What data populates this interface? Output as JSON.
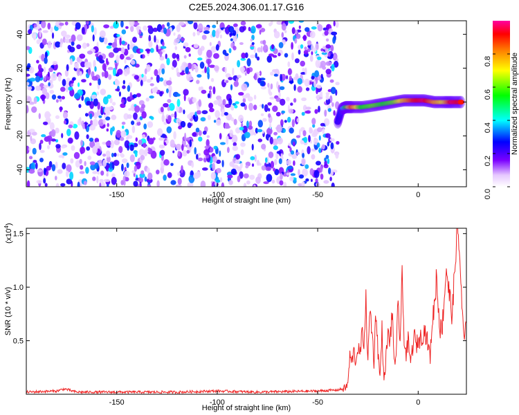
{
  "title": "C2E5.2024.306.01.17.G16",
  "chart_data": [
    {
      "type": "heatmap",
      "xlabel": "Height of straight line (km)",
      "ylabel": "Frequency (Hz)",
      "xlim": [
        -195,
        24
      ],
      "ylim": [
        -50,
        48
      ],
      "xticks": [
        -150,
        -100,
        -50,
        0
      ],
      "yticks": [
        -40,
        -20,
        0,
        20,
        40
      ],
      "noise_region": {
        "x": [
          -195,
          -40
        ],
        "y": [
          -50,
          48
        ],
        "amplitude_range": [
          0.05,
          0.4
        ]
      },
      "signal_ridge": [
        {
          "x": -40,
          "y": -12,
          "amplitude": 0.25
        },
        {
          "x": -38,
          "y": -4,
          "amplitude": 0.3
        },
        {
          "x": -36,
          "y": -3,
          "amplitude": 0.5
        },
        {
          "x": -33,
          "y": -3,
          "amplitude": 0.85
        },
        {
          "x": -28,
          "y": -3,
          "amplitude": 0.55
        },
        {
          "x": -22,
          "y": -2,
          "amplitude": 0.6
        },
        {
          "x": -17,
          "y": -1,
          "amplitude": 0.55
        },
        {
          "x": -12,
          "y": 0,
          "amplitude": 0.6
        },
        {
          "x": -7,
          "y": 1,
          "amplitude": 0.75
        },
        {
          "x": -2,
          "y": 1,
          "amplitude": 0.9
        },
        {
          "x": 3,
          "y": 1,
          "amplitude": 0.95
        },
        {
          "x": 8,
          "y": 0,
          "amplitude": 0.8
        },
        {
          "x": 13,
          "y": 0,
          "amplitude": 0.7
        },
        {
          "x": 17,
          "y": 0,
          "amplitude": 0.95
        },
        {
          "x": 22,
          "y": 0,
          "amplitude": 0.9
        }
      ]
    },
    {
      "type": "colorbar",
      "label": "Normalized spectral amplitude",
      "range": [
        0,
        1
      ],
      "ticks": [
        "0.0",
        "0.2",
        "0.4",
        "0.6",
        "0.8"
      ],
      "colormap": [
        "#ffffff",
        "#e6c8ff",
        "#7a00ff",
        "#0000ff",
        "#00ffff",
        "#00ff00",
        "#ffff00",
        "#ff8000",
        "#ff0000",
        "#ff00a0"
      ]
    },
    {
      "type": "line",
      "xlabel": "Height of straight line (km)",
      "ylabel": "SNR (10 * v/v)",
      "multiplier_label": "(x10",
      "multiplier_exp": "4",
      "xlim": [
        -195,
        24
      ],
      "ylim": [
        0,
        1.55
      ],
      "xticks": [
        -150,
        -100,
        -50,
        0
      ],
      "yticks": [
        "0.5",
        "1.0",
        "1.5"
      ],
      "color": "#ee2222",
      "series": [
        {
          "x": [
            -195,
            -180,
            -176,
            -170,
            -150,
            -120,
            -100,
            -80,
            -50,
            -40,
            -36,
            -35,
            -34,
            -33,
            -32,
            -31,
            -30,
            -29,
            -28,
            -27,
            -26,
            -25,
            -24,
            -23,
            -22,
            -21,
            -20,
            -19,
            -18,
            -17,
            -16,
            -15,
            -14,
            -13,
            -12,
            -11,
            -10,
            -9,
            -8,
            -7,
            -6,
            -5,
            -4,
            -3,
            -2,
            -1,
            0,
            1,
            2,
            3,
            4,
            5,
            6,
            7,
            8,
            9,
            10,
            11,
            12,
            13,
            14,
            15,
            16,
            17,
            18,
            19,
            20,
            21,
            22,
            23,
            24
          ],
          "y": [
            0.02,
            0.03,
            0.05,
            0.02,
            0.02,
            0.02,
            0.03,
            0.02,
            0.03,
            0.04,
            0.06,
            0.1,
            0.35,
            0.3,
            0.4,
            0.3,
            0.45,
            0.35,
            0.55,
            0.5,
            0.85,
            0.3,
            0.8,
            0.6,
            0.3,
            0.8,
            0.4,
            0.15,
            0.6,
            0.1,
            0.35,
            0.55,
            0.5,
            0.75,
            0.35,
            0.3,
            0.85,
            0.5,
            1.05,
            0.55,
            0.35,
            0.5,
            0.3,
            0.4,
            0.55,
            0.45,
            0.5,
            0.52,
            0.55,
            0.6,
            0.55,
            0.45,
            0.35,
            0.7,
            0.8,
            1.1,
            0.85,
            0.6,
            0.65,
            0.9,
            1.2,
            1.0,
            0.85,
            0.75,
            1.05,
            1.55,
            1.45,
            1.2,
            0.7,
            0.5,
            0.65
          ]
        }
      ]
    }
  ]
}
